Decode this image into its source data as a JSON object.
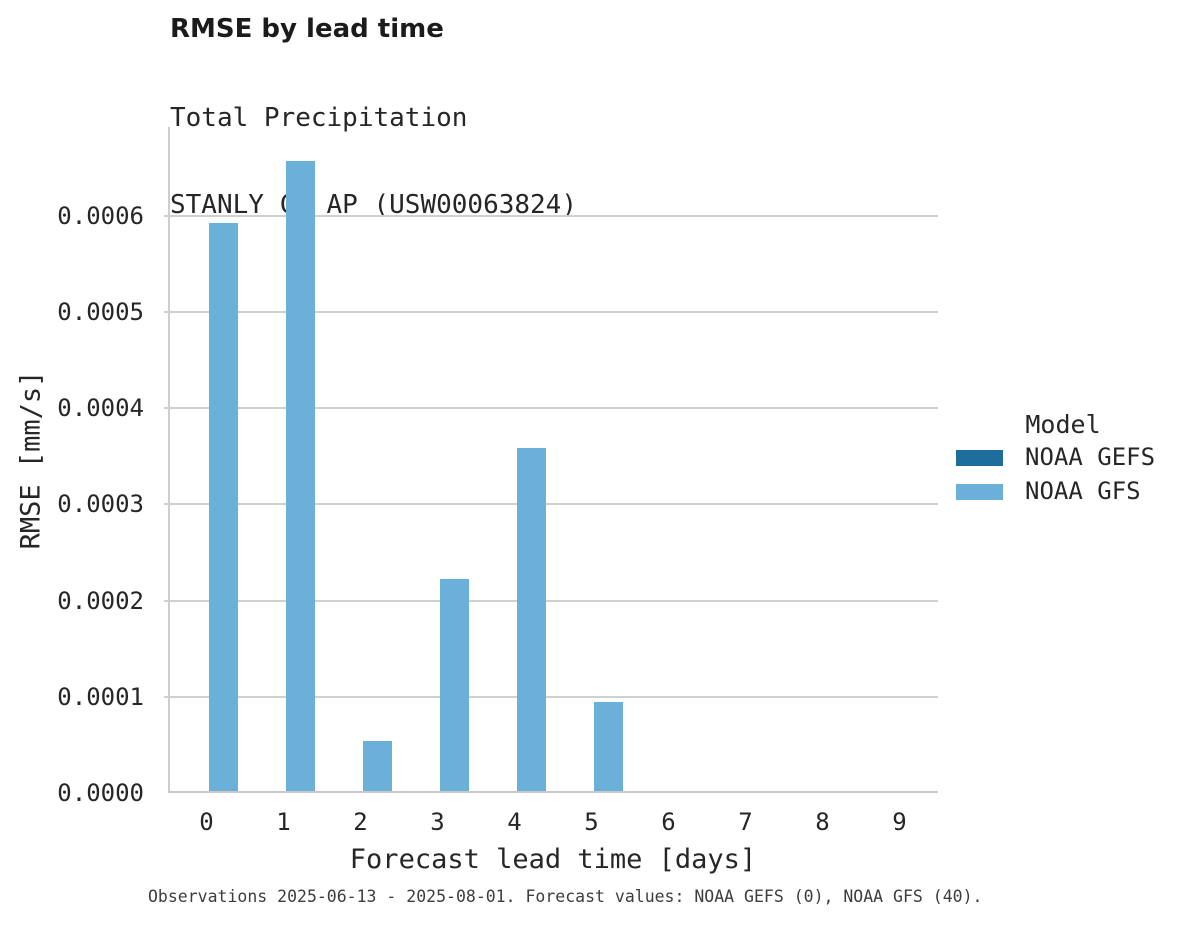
{
  "header": {
    "title": "RMSE by lead time",
    "subtitle_line1": "Total Precipitation",
    "subtitle_line2": "STANLY CO AP (USW00063824)"
  },
  "legend": {
    "title": "Model",
    "entries": [
      {
        "label": "NOAA GEFS",
        "color": "#1D6E9C"
      },
      {
        "label": "NOAA GFS",
        "color": "#6BB0D8"
      }
    ]
  },
  "footnote": "Observations 2025-06-13 - 2025-08-01. Forecast values: NOAA GEFS (0), NOAA GFS (40).",
  "colors": {
    "bar_gefs": "#1D6E9C",
    "bar_gfs": "#6BB0D8",
    "gridline": "#D0D0D0",
    "axis_line": "#CDCDCD",
    "text": "#262626",
    "footnote_text": "#3D3D3D"
  },
  "chart_data": {
    "type": "bar",
    "title": "RMSE by lead time",
    "subtitle": [
      "Total Precipitation",
      "STANLY CO AP (USW00063824)"
    ],
    "xlabel": "Forecast lead time [days]",
    "ylabel": "RMSE [mm/s]",
    "categories": [
      "0",
      "1",
      "2",
      "3",
      "4",
      "5",
      "6",
      "7",
      "8",
      "9"
    ],
    "series": [
      {
        "name": "NOAA GEFS",
        "color": "#1D6E9C",
        "values": [
          0,
          0,
          0,
          0,
          0,
          0,
          0,
          0,
          0,
          0
        ]
      },
      {
        "name": "NOAA GFS",
        "color": "#6BB0D8",
        "values": [
          0.00059,
          0.000655,
          5.2e-05,
          0.00022,
          0.000356,
          9.2e-05,
          0,
          0,
          0,
          0
        ]
      }
    ],
    "ylim": [
      0,
      0.000692
    ],
    "yticks": [
      0.0,
      0.0001,
      0.0002,
      0.0003,
      0.0004,
      0.0005,
      0.0006
    ],
    "ytick_labels": [
      "0.0000",
      "0.0001",
      "0.0002",
      "0.0003",
      "0.0004",
      "0.0005",
      "0.0006"
    ],
    "grid": "horizontal",
    "legend_position": "right",
    "legend_title": "Model"
  }
}
